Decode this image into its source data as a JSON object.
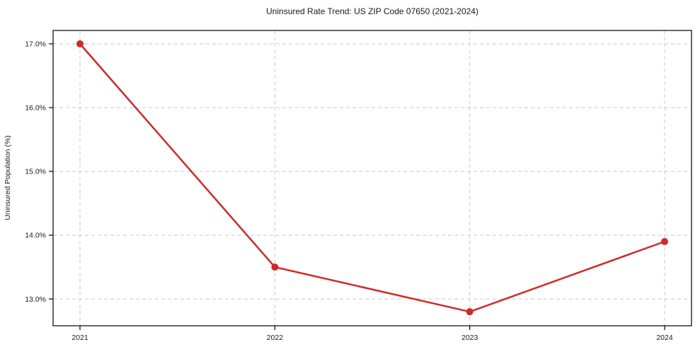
{
  "figure": {
    "background": "#ffffff"
  },
  "chart_data": {
    "type": "line",
    "title": "Uninsured Rate Trend: US ZIP Code 07650 (2021-2024)",
    "xlabel": "",
    "ylabel": "Uninsured Population (%)",
    "x": [
      "2021",
      "2022",
      "2023",
      "2024"
    ],
    "series": [
      {
        "values": [
          17.0,
          13.5,
          12.8,
          13.9
        ],
        "color": "#d62728",
        "marker": "circle",
        "line_width": 2.5,
        "marker_radius": 5
      }
    ],
    "ylim": [
      12.58,
      17.21
    ],
    "yticks": [
      13.0,
      14.0,
      15.0,
      16.0,
      17.0
    ],
    "ytick_labels": [
      "13.0%",
      "14.0%",
      "15.0%",
      "16.0%",
      "17.0%"
    ],
    "xtick_labels": [
      "2021",
      "2022",
      "2023",
      "2024"
    ],
    "grid": true,
    "grid_style": "dashed",
    "grid_color": "#c9c9c9",
    "spine_color": "#000000",
    "text_color": "#1a1a1a",
    "legend": false
  }
}
